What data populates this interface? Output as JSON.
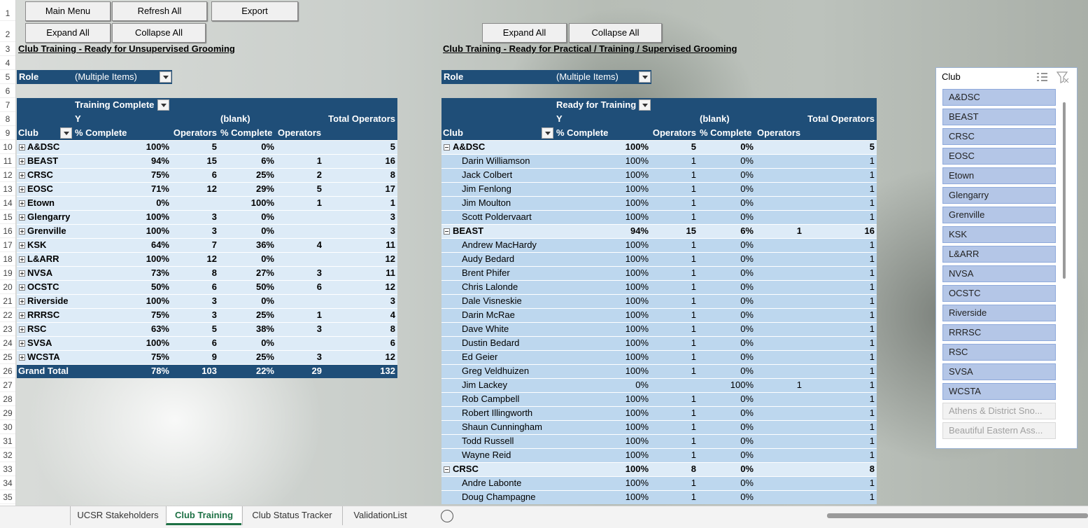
{
  "buttons": {
    "top": [
      "Main Menu",
      "Refresh All",
      "Export"
    ],
    "left": [
      "Expand All",
      "Collapse All"
    ],
    "right": [
      "Expand All",
      "Collapse All"
    ]
  },
  "row_numbers": [
    1,
    2,
    3,
    4,
    5,
    6,
    7,
    8,
    9,
    10,
    11,
    12,
    13,
    14,
    15,
    16,
    17,
    18,
    19,
    20,
    21,
    22,
    23,
    24,
    25,
    26,
    27,
    28,
    29,
    30,
    31,
    32,
    33,
    34,
    35
  ],
  "left_table": {
    "title": "Club Training - Ready for Unsupervised Grooming",
    "filter": {
      "label": "Role",
      "value": "(Multiple Items)"
    },
    "header": {
      "field": "Training Complete",
      "col1": "Y",
      "col2": "(blank)",
      "total": "Total Operators",
      "row_field": "Club",
      "measures": [
        "% Complete",
        "Operators",
        "% Complete",
        "Operators"
      ]
    },
    "rows": [
      {
        "club": "A&DSC",
        "cells": [
          "100%",
          "5",
          "0%",
          null,
          "5"
        ]
      },
      {
        "club": "BEAST",
        "cells": [
          "94%",
          "15",
          "6%",
          "1",
          "16"
        ]
      },
      {
        "club": "CRSC",
        "cells": [
          "75%",
          "6",
          "25%",
          "2",
          "8"
        ]
      },
      {
        "club": "EOSC",
        "cells": [
          "71%",
          "12",
          "29%",
          "5",
          "17"
        ]
      },
      {
        "club": "Etown",
        "cells": [
          "0%",
          null,
          "100%",
          "1",
          "1"
        ]
      },
      {
        "club": "Glengarry",
        "cells": [
          "100%",
          "3",
          "0%",
          null,
          "3"
        ]
      },
      {
        "club": "Grenville",
        "cells": [
          "100%",
          "3",
          "0%",
          null,
          "3"
        ]
      },
      {
        "club": "KSK",
        "cells": [
          "64%",
          "7",
          "36%",
          "4",
          "11"
        ]
      },
      {
        "club": "L&ARR",
        "cells": [
          "100%",
          "12",
          "0%",
          null,
          "12"
        ]
      },
      {
        "club": "NVSA",
        "cells": [
          "73%",
          "8",
          "27%",
          "3",
          "11"
        ]
      },
      {
        "club": "OCSTC",
        "cells": [
          "50%",
          "6",
          "50%",
          "6",
          "12"
        ]
      },
      {
        "club": "Riverside",
        "cells": [
          "100%",
          "3",
          "0%",
          null,
          "3"
        ]
      },
      {
        "club": "RRRSC",
        "cells": [
          "75%",
          "3",
          "25%",
          "1",
          "4"
        ]
      },
      {
        "club": "RSC",
        "cells": [
          "63%",
          "5",
          "38%",
          "3",
          "8"
        ]
      },
      {
        "club": "SVSA",
        "cells": [
          "100%",
          "6",
          "0%",
          null,
          "6"
        ]
      },
      {
        "club": "WCSTA",
        "cells": [
          "75%",
          "9",
          "25%",
          "3",
          "12"
        ]
      }
    ],
    "grand_total": {
      "club": "Grand Total",
      "cells": [
        "78%",
        "103",
        "22%",
        "29",
        "132"
      ]
    }
  },
  "right_table": {
    "title": "Club Training - Ready for Practical / Training / Supervised Grooming",
    "filter": {
      "label": "Role",
      "value": "(Multiple Items)"
    },
    "header": {
      "field": "Ready for Training",
      "col1": "Y",
      "col2": "(blank)",
      "total": "Total Operators",
      "row_field": "Club",
      "measures": [
        "% Complete",
        "Operators",
        "% Complete",
        "Operators"
      ]
    },
    "groups": [
      {
        "club": "A&DSC",
        "cells": [
          "100%",
          "5",
          "0%",
          null,
          "5"
        ],
        "members": [
          {
            "name": "Darin Williamson",
            "cells": [
              "100%",
              "1",
              "0%",
              null,
              "1"
            ]
          },
          {
            "name": "Jack Colbert",
            "cells": [
              "100%",
              "1",
              "0%",
              null,
              "1"
            ]
          },
          {
            "name": "Jim Fenlong",
            "cells": [
              "100%",
              "1",
              "0%",
              null,
              "1"
            ]
          },
          {
            "name": "Jim Moulton",
            "cells": [
              "100%",
              "1",
              "0%",
              null,
              "1"
            ]
          },
          {
            "name": "Scott Poldervaart",
            "cells": [
              "100%",
              "1",
              "0%",
              null,
              "1"
            ]
          }
        ]
      },
      {
        "club": "BEAST",
        "cells": [
          "94%",
          "15",
          "6%",
          "1",
          "16"
        ],
        "members": [
          {
            "name": "Andrew MacHardy",
            "cells": [
              "100%",
              "1",
              "0%",
              null,
              "1"
            ]
          },
          {
            "name": "Audy Bedard",
            "cells": [
              "100%",
              "1",
              "0%",
              null,
              "1"
            ]
          },
          {
            "name": "Brent Phifer",
            "cells": [
              "100%",
              "1",
              "0%",
              null,
              "1"
            ]
          },
          {
            "name": "Chris Lalonde",
            "cells": [
              "100%",
              "1",
              "0%",
              null,
              "1"
            ]
          },
          {
            "name": "Dale Visneskie",
            "cells": [
              "100%",
              "1",
              "0%",
              null,
              "1"
            ]
          },
          {
            "name": "Darin McRae",
            "cells": [
              "100%",
              "1",
              "0%",
              null,
              "1"
            ]
          },
          {
            "name": "Dave White",
            "cells": [
              "100%",
              "1",
              "0%",
              null,
              "1"
            ]
          },
          {
            "name": "Dustin Bedard",
            "cells": [
              "100%",
              "1",
              "0%",
              null,
              "1"
            ]
          },
          {
            "name": "Ed Geier",
            "cells": [
              "100%",
              "1",
              "0%",
              null,
              "1"
            ]
          },
          {
            "name": "Greg Veldhuizen",
            "cells": [
              "100%",
              "1",
              "0%",
              null,
              "1"
            ]
          },
          {
            "name": "Jim Lackey",
            "cells": [
              "0%",
              null,
              "100%",
              "1",
              "1"
            ]
          },
          {
            "name": "Rob Campbell",
            "cells": [
              "100%",
              "1",
              "0%",
              null,
              "1"
            ]
          },
          {
            "name": "Robert Illingworth",
            "cells": [
              "100%",
              "1",
              "0%",
              null,
              "1"
            ]
          },
          {
            "name": "Shaun Cunningham",
            "cells": [
              "100%",
              "1",
              "0%",
              null,
              "1"
            ]
          },
          {
            "name": "Todd Russell",
            "cells": [
              "100%",
              "1",
              "0%",
              null,
              "1"
            ]
          },
          {
            "name": "Wayne Reid",
            "cells": [
              "100%",
              "1",
              "0%",
              null,
              "1"
            ]
          }
        ]
      },
      {
        "club": "CRSC",
        "cells": [
          "100%",
          "8",
          "0%",
          null,
          "8"
        ],
        "members": [
          {
            "name": "Andre Labonte",
            "cells": [
              "100%",
              "1",
              "0%",
              null,
              "1"
            ]
          },
          {
            "name": "Doug Champagne",
            "cells": [
              "100%",
              "1",
              "0%",
              null,
              "1"
            ]
          }
        ]
      }
    ]
  },
  "slicer": {
    "title": "Club",
    "items": [
      {
        "label": "A&DSC",
        "selected": true
      },
      {
        "label": "BEAST",
        "selected": true
      },
      {
        "label": "CRSC",
        "selected": true
      },
      {
        "label": "EOSC",
        "selected": true
      },
      {
        "label": "Etown",
        "selected": true
      },
      {
        "label": "Glengarry",
        "selected": true
      },
      {
        "label": "Grenville",
        "selected": true
      },
      {
        "label": "KSK",
        "selected": true
      },
      {
        "label": "L&ARR",
        "selected": true
      },
      {
        "label": "NVSA",
        "selected": true
      },
      {
        "label": "OCSTC",
        "selected": true
      },
      {
        "label": "Riverside",
        "selected": true
      },
      {
        "label": "RRRSC",
        "selected": true
      },
      {
        "label": "RSC",
        "selected": true
      },
      {
        "label": "SVSA",
        "selected": true
      },
      {
        "label": "WCSTA",
        "selected": true
      },
      {
        "label": "Athens & District Sno...",
        "selected": false
      },
      {
        "label": "Beautiful Eastern Ass...",
        "selected": false
      }
    ]
  },
  "tabs": [
    {
      "label": "UCSR Stakeholders",
      "active": false
    },
    {
      "label": "Club Training",
      "active": true
    },
    {
      "label": "Club Status Tracker",
      "active": false
    },
    {
      "label": "ValidationList",
      "active": false
    }
  ]
}
